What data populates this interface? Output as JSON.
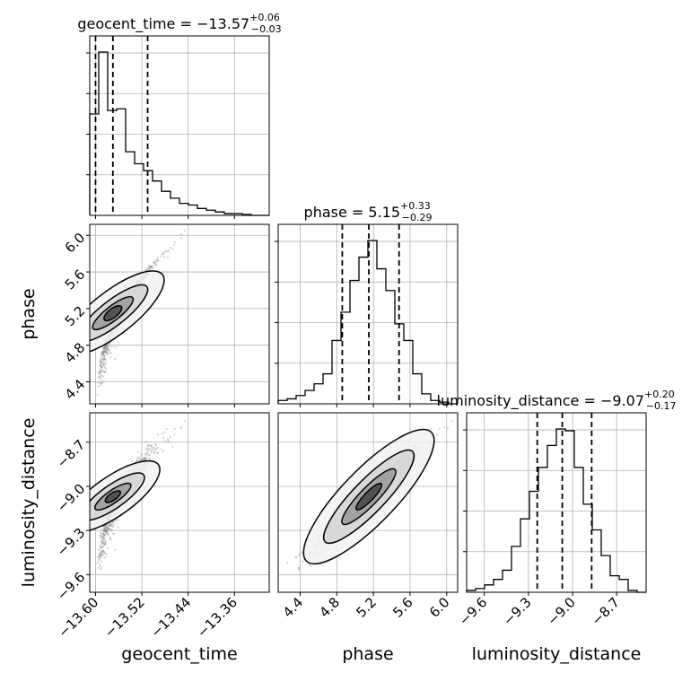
{
  "chart_data": {
    "type": "corner",
    "parameters": [
      "geocent_time",
      "phase",
      "luminosity_distance"
    ],
    "titles": {
      "geocent_time": {
        "text": "geocent_time = −13.57",
        "sup": "+0.06",
        "sub": "−0.03"
      },
      "phase": {
        "text": "phase = 5.15",
        "sup": "+0.33",
        "sub": "−0.29"
      },
      "luminosity_distance": {
        "text": "luminosity_distance = −9.07",
        "sup": "+0.20",
        "sub": "−0.17"
      }
    },
    "axis_labels": {
      "geocent_time": "geocent_time",
      "phase": "phase",
      "luminosity_distance": "luminosity_distance"
    },
    "ranges": {
      "geocent_time": [
        -13.61,
        -13.3
      ],
      "phase": [
        4.16,
        6.12
      ],
      "luminosity_distance": [
        -9.72,
        -8.5
      ]
    },
    "ticks": {
      "geocent_time": [
        -13.6,
        -13.52,
        -13.44,
        -13.36
      ],
      "phase": [
        4.4,
        4.8,
        5.2,
        5.6,
        6.0
      ],
      "luminosity_distance": [
        -9.6,
        -9.3,
        -9.0,
        -8.7
      ]
    },
    "tick_labels": {
      "geocent_time": [
        "−13.60",
        "−13.52",
        "−13.44",
        "−13.36"
      ],
      "phase": [
        "4.4",
        "4.8",
        "5.2",
        "5.6",
        "6.0"
      ],
      "luminosity_distance": [
        "−9.6",
        "−9.3",
        "−9.0",
        "−8.7"
      ]
    },
    "quantiles": {
      "geocent_time": [
        -13.6,
        -13.57,
        -13.51
      ],
      "phase": [
        4.86,
        5.15,
        5.48
      ],
      "luminosity_distance": [
        -9.24,
        -9.07,
        -8.87
      ]
    },
    "histograms": {
      "geocent_time": {
        "edges": [
          -13.61,
          -13.5945,
          -13.579,
          -13.5635,
          -13.548,
          -13.5325,
          -13.517,
          -13.5015,
          -13.486,
          -13.4705,
          -13.455,
          -13.4395,
          -13.424,
          -13.4085,
          -13.393,
          -13.3775,
          -13.362,
          -13.3465,
          -13.331,
          -13.3155,
          -13.3
        ],
        "counts": [
          0.59,
          0.95,
          0.61,
          0.62,
          0.37,
          0.3,
          0.26,
          0.2,
          0.14,
          0.1,
          0.07,
          0.06,
          0.04,
          0.03,
          0.02,
          0.01,
          0.01,
          0.005,
          0.0,
          0.0
        ]
      },
      "phase": {
        "edges": [
          4.16,
          4.258,
          4.356,
          4.454,
          4.552,
          4.65,
          4.748,
          4.846,
          4.944,
          5.042,
          5.14,
          5.238,
          5.336,
          5.434,
          5.532,
          5.63,
          5.728,
          5.826,
          5.924,
          6.022,
          6.12
        ],
        "counts": [
          0.02,
          0.03,
          0.05,
          0.08,
          0.12,
          0.18,
          0.38,
          0.55,
          0.74,
          0.88,
          0.98,
          0.81,
          0.68,
          0.48,
          0.38,
          0.18,
          0.06,
          0.02,
          0.01,
          0.0
        ]
      },
      "luminosity_distance": {
        "edges": [
          -9.72,
          -9.659,
          -9.598,
          -9.537,
          -9.476,
          -9.415,
          -9.354,
          -9.293,
          -9.232,
          -9.171,
          -9.11,
          -9.049,
          -8.988,
          -8.927,
          -8.866,
          -8.805,
          -8.744,
          -8.683,
          -8.622,
          -8.561,
          -8.5
        ],
        "counts": [
          0.01,
          0.02,
          0.04,
          0.07,
          0.12,
          0.25,
          0.4,
          0.55,
          0.68,
          0.8,
          0.89,
          0.88,
          0.68,
          0.48,
          0.34,
          0.2,
          0.09,
          0.07,
          0.01,
          0.0
        ]
      }
    },
    "scatter_model": {
      "center": {
        "geocent_time": -13.57,
        "phase": 5.15,
        "luminosity_distance": -9.07
      },
      "ld_per_phase": 0.58,
      "n_points": 1000
    },
    "contour_fill_colors": [
      "#f2f2f2",
      "#d4d4d4",
      "#999999",
      "#444444"
    ],
    "contour_line_color": "#000000",
    "grid": true,
    "style": {
      "histogram_color": "#000000",
      "point_color": "#888888"
    }
  }
}
